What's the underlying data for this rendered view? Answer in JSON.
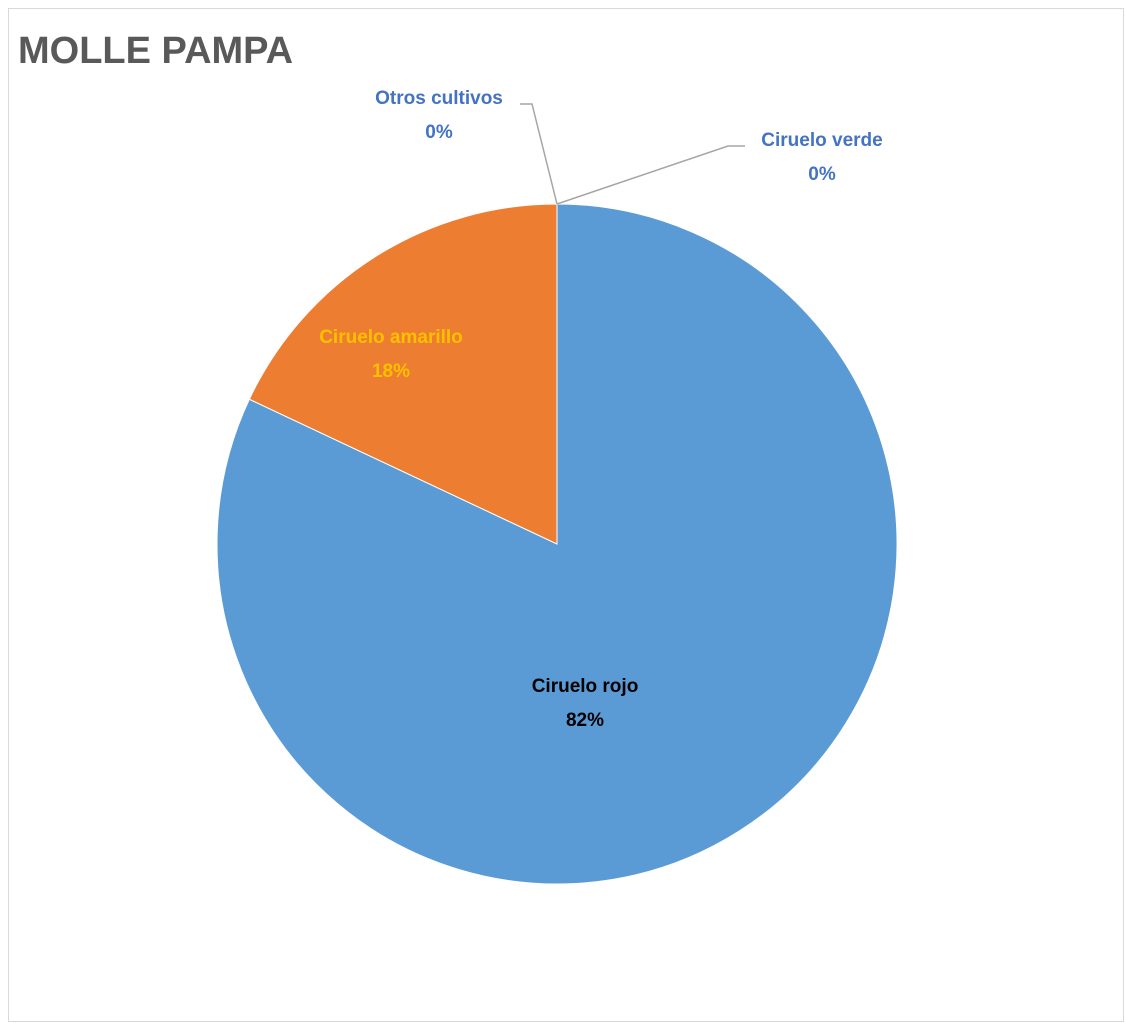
{
  "chart_data": {
    "type": "pie",
    "title": "MOLLE PAMPA",
    "slices": [
      {
        "label": "Ciruelo rojo",
        "value": 82,
        "percent_label": "82%",
        "color": "#5b9bd5",
        "label_color": "#000000"
      },
      {
        "label": "Ciruelo verde",
        "value": 0,
        "percent_label": "0%",
        "color": "#a5a5a5",
        "label_color": "#4472c4"
      },
      {
        "label": "Otros cultivos",
        "value": 0,
        "percent_label": "0%",
        "color": "#ffc000",
        "label_color": "#4472c4"
      },
      {
        "label": "Ciruelo amarillo",
        "value": 18,
        "percent_label": "18%",
        "color": "#ed7d31",
        "label_color": "#ffc000"
      }
    ],
    "legend": "none",
    "leader_line_color": "#a6a6a6"
  }
}
